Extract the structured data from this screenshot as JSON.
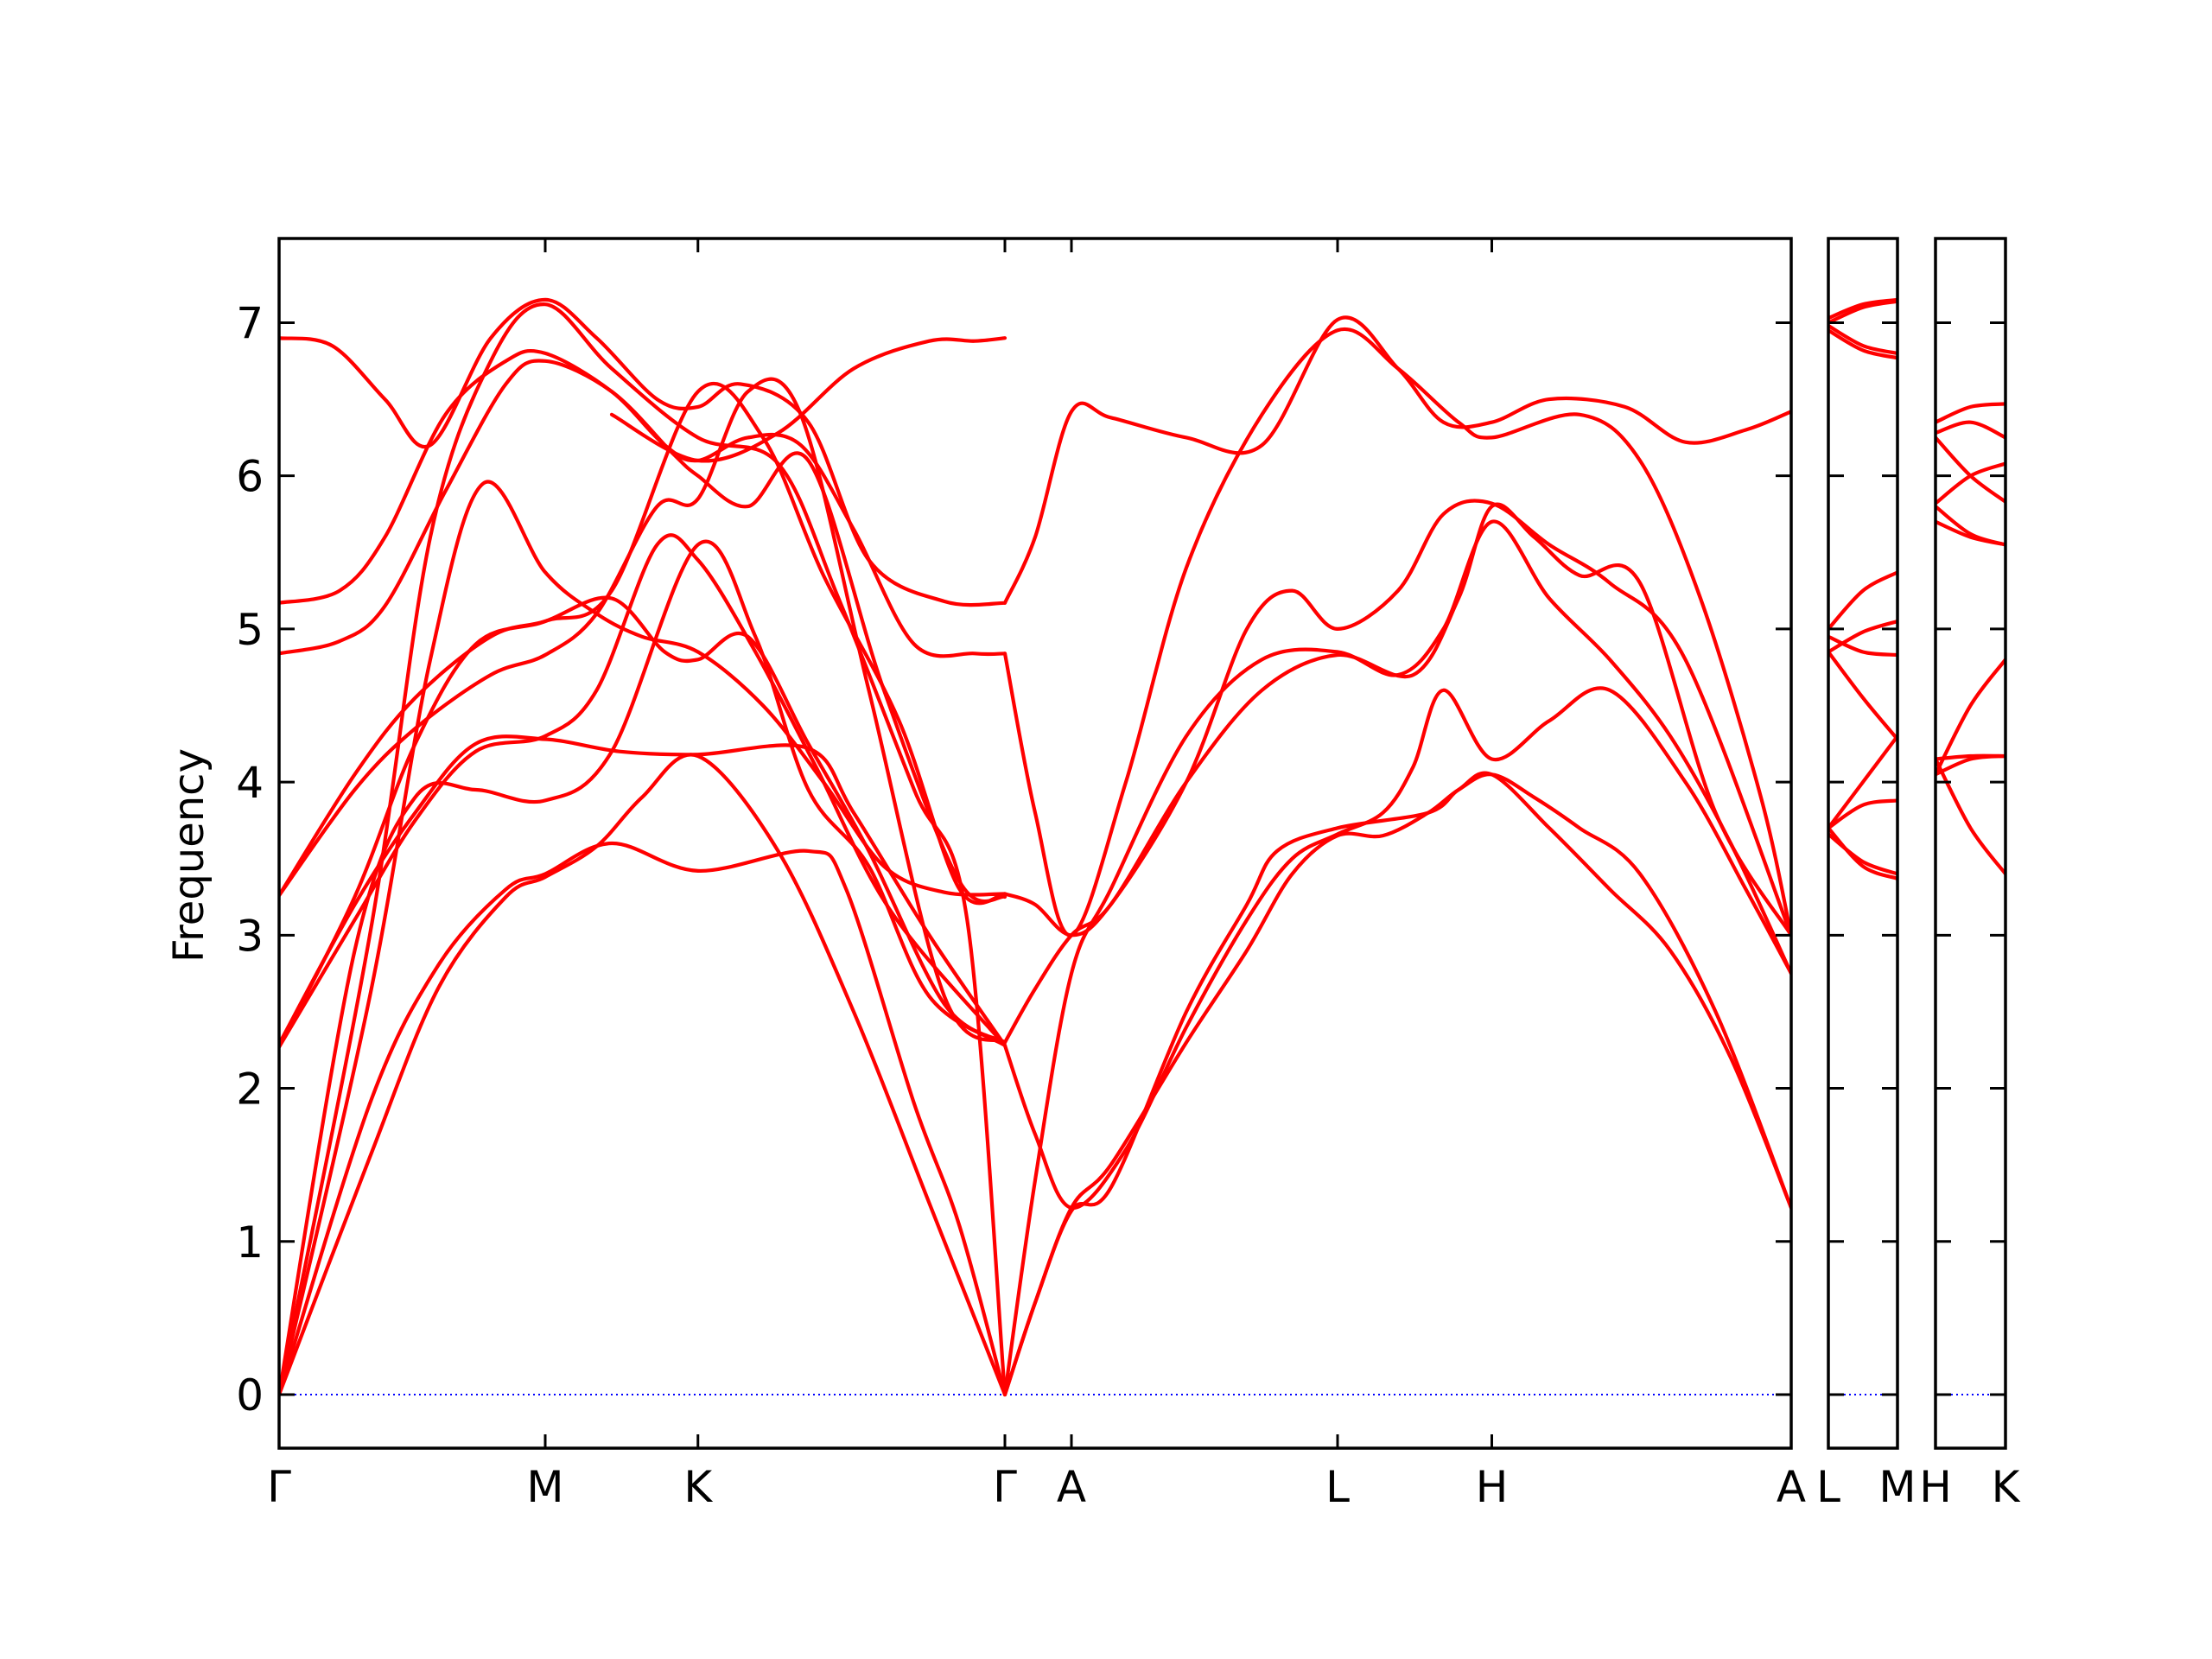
{
  "chart_data": {
    "type": "line",
    "title": "",
    "ylabel": "Frequency",
    "xlabel": "",
    "ylim": [
      -0.35,
      7.55
    ],
    "yticks": [
      0,
      1,
      2,
      3,
      4,
      5,
      6,
      7
    ],
    "zero_line": {
      "value": 0,
      "color": "#0000ff",
      "style": "dotted"
    },
    "line_color": "#ff0000",
    "axis_color": "#000000",
    "grid": false,
    "legend": "none",
    "panels": [
      {
        "id": "main",
        "xlim": [
          0,
          10
        ],
        "ticks": [
          {
            "x": 0,
            "label": "Γ"
          },
          {
            "x": 1.76,
            "label": "M"
          },
          {
            "x": 2.77,
            "label": "K"
          },
          {
            "x": 4.8,
            "label": "Γ"
          },
          {
            "x": 5.24,
            "label": "A"
          },
          {
            "x": 7.0,
            "label": "L"
          },
          {
            "x": 8.02,
            "label": "H"
          },
          {
            "x": 10.0,
            "label": "A"
          }
        ],
        "series": [
          {
            "x": [
              0,
              0.6,
              1.05,
              1.5,
              1.76,
              2.1,
              2.4,
              2.77,
              3.3,
              3.8,
              4.3,
              4.8
            ],
            "y": [
              0,
              1.55,
              2.65,
              3.25,
              3.38,
              3.58,
              3.9,
              4.17,
              3.55,
              2.5,
              1.25,
              0
            ]
          },
          {
            "x": [
              0,
              0.6,
              1.05,
              1.5,
              1.76,
              2.2,
              2.77,
              3.5,
              3.75,
              4.2,
              4.5,
              4.8
            ],
            "y": [
              0,
              1.9,
              2.8,
              3.3,
              3.4,
              3.6,
              3.42,
              3.55,
              3.3,
              1.9,
              1.1,
              0
            ]
          },
          {
            "x": [
              0,
              0.5,
              0.9,
              1.3,
              1.76,
              2.2,
              2.77,
              3.15,
              3.5,
              3.9,
              4.3,
              4.8
            ],
            "y": [
              0,
              2.9,
              3.9,
              3.95,
              3.88,
              4.2,
              5.55,
              4.95,
              3.95,
              3.45,
              2.6,
              2.28
            ]
          },
          {
            "x": [
              0,
              0.5,
              0.9,
              1.3,
              1.76,
              2.1,
              2.5,
              2.77,
              3.15,
              3.55,
              4.05,
              4.8
            ],
            "y": [
              2.27,
              3.1,
              3.75,
              4.2,
              4.3,
              4.6,
              5.55,
              5.45,
              4.85,
              4.1,
              3.15,
              2.28
            ]
          },
          {
            "x": [
              0,
              0.5,
              0.9,
              1.3,
              1.76,
              2.25,
              2.77,
              3.5,
              3.8,
              4.3,
              4.8
            ],
            "y": [
              2.29,
              3.2,
              3.8,
              4.25,
              4.28,
              4.2,
              4.18,
              4.22,
              3.8,
              3.0,
              2.28
            ]
          },
          {
            "x": [
              0,
              0.5,
              0.9,
              1.4,
              1.76,
              2.1,
              2.5,
              2.77,
              3.1,
              3.45,
              3.9,
              4.4,
              4.8
            ],
            "y": [
              3.26,
              3.95,
              4.35,
              4.7,
              4.83,
              5.1,
              5.8,
              5.85,
              6.55,
              6.4,
              4.6,
              2.6,
              2.3
            ]
          },
          {
            "x": [
              0,
              0.5,
              0.9,
              1.4,
              1.76,
              2.2,
              2.55,
              2.77,
              3.1,
              3.5,
              3.9,
              4.4,
              4.8
            ],
            "y": [
              3.26,
              4.05,
              4.55,
              4.95,
              5.05,
              5.2,
              4.85,
              4.8,
              4.95,
              4.25,
              3.55,
              2.55,
              2.3
            ]
          },
          {
            "x": [
              0,
              0.4,
              0.7,
              1.1,
              1.5,
              1.76,
              2.2,
              2.6,
              2.77,
              3.1,
              3.5,
              4.0,
              4.5,
              4.8
            ],
            "y": [
              4.84,
              4.92,
              5.15,
              5.9,
              6.6,
              6.75,
              6.55,
              6.15,
              6.0,
              5.8,
              6.1,
              4.6,
              3.35,
              3.25
            ]
          },
          {
            "x": [
              0,
              0.4,
              0.7,
              1.1,
              1.5,
              1.76,
              2.2,
              2.55,
              2.77,
              3.1,
              3.45,
              3.8,
              4.2,
              4.6,
              4.8
            ],
            "y": [
              5.17,
              5.25,
              5.6,
              6.4,
              6.75,
              6.8,
              6.55,
              6.2,
              6.1,
              6.25,
              6.2,
              5.65,
              4.9,
              4.84,
              4.84
            ]
          },
          {
            "x": [
              0,
              0.35,
              0.7,
              1.0,
              1.4,
              1.76,
              2.1,
              2.5,
              2.77,
              3.05,
              3.5,
              3.9,
              4.4,
              4.8
            ],
            "y": [
              6.9,
              6.85,
              6.5,
              6.2,
              6.9,
              7.15,
              6.9,
              6.5,
              6.45,
              6.6,
              6.35,
              5.45,
              5.18,
              5.17
            ]
          },
          {
            "x": [
              0,
              0.6,
              1.0,
              1.35,
              1.76,
              2.1,
              2.4,
              2.77,
              3.2,
              3.6,
              4.0,
              4.4,
              4.8
            ],
            "y": [
              0,
              2.6,
              4.8,
              5.95,
              5.37,
              5.1,
              4.95,
              4.85,
              4.5,
              4.0,
              3.45,
              3.28,
              3.27
            ]
          },
          {
            "x": [
              0,
              0.5,
              0.9,
              1.3,
              1.76,
              2.2,
              2.77,
              3.2,
              3.6,
              4.1,
              4.5,
              4.8
            ],
            "y": [
              2.27,
              3.25,
              4.25,
              4.9,
              5.05,
              5.25,
              6.55,
              6.25,
              5.35,
              4.4,
              3.3,
              3.27
            ]
          },
          {
            "x": [
              0,
              0.6,
              1.0,
              1.4,
              1.76,
              2.2,
              2.77,
              3.3,
              3.7,
              4.2,
              4.55,
              4.8
            ],
            "y": [
              0,
              3.0,
              5.6,
              6.75,
              7.12,
              6.7,
              6.25,
              6.08,
              5.2,
              3.95,
              3.1,
              0
            ]
          },
          {
            "x": [
              2.2,
              2.77,
              3.3,
              3.8,
              4.3,
              4.6,
              4.8
            ],
            "y": [
              6.4,
              6.1,
              6.28,
              6.7,
              6.88,
              6.88,
              6.9
            ]
          },
          {
            "x": [
              4.8,
              5.0,
              5.24,
              5.5,
              6.0,
              6.5,
              7.0,
              7.4,
              7.7,
              8.02,
              8.4,
              8.9,
              9.3,
              9.7,
              10.0
            ],
            "y": [
              5.17,
              5.6,
              6.42,
              6.38,
              6.25,
              6.2,
              7.02,
              6.7,
              6.35,
              6.35,
              6.5,
              6.45,
              6.22,
              6.3,
              6.42
            ]
          },
          {
            "x": [
              4.8,
              5.0,
              5.24,
              5.6,
              6.0,
              6.5,
              7.0,
              7.4,
              7.8,
              8.02,
              8.6,
              9.0,
              9.4,
              9.8,
              10.0
            ],
            "y": [
              4.84,
              3.8,
              3.0,
              4.0,
              5.4,
              6.4,
              6.95,
              6.7,
              6.35,
              6.25,
              6.4,
              6.1,
              5.2,
              3.9,
              3.0
            ]
          },
          {
            "x": [
              4.8,
              5.0,
              5.24,
              5.5,
              6.0,
              6.4,
              6.6,
              7.0,
              7.6,
              7.8,
              8.02,
              8.4,
              8.8,
              9.2,
              9.6,
              10.0
            ],
            "y": [
              0.0,
              0.6,
              1.2,
              1.35,
              2.5,
              3.2,
              3.55,
              3.7,
              3.8,
              3.95,
              4.05,
              3.7,
              3.3,
              2.9,
              2.2,
              1.22
            ]
          },
          {
            "x": [
              4.8,
              5.0,
              5.24,
              5.5,
              6.0,
              6.4,
              6.7,
              7.0,
              7.3,
              7.6,
              7.8,
              8.02,
              8.3,
              8.6,
              9.0,
              9.5,
              10.0
            ],
            "y": [
              0.0,
              0.6,
              1.22,
              1.5,
              2.3,
              2.9,
              3.4,
              3.65,
              3.65,
              3.8,
              3.95,
              4.05,
              3.9,
              3.7,
              3.4,
              2.5,
              1.22
            ]
          },
          {
            "x": [
              4.8,
              5.0,
              5.24,
              5.5,
              6.0,
              6.5,
              7.0,
              7.5,
              7.8,
              8.02,
              8.3,
              8.6,
              9.0,
              9.5,
              10.0
            ],
            "y": [
              3.27,
              3.2,
              3.0,
              3.2,
              4.0,
              4.6,
              4.83,
              4.7,
              5.2,
              5.8,
              5.6,
              5.35,
              5.3,
              3.8,
              3.0
            ]
          },
          {
            "x": [
              4.8,
              5.0,
              5.24,
              5.5,
              6.0,
              6.4,
              6.7,
              7.0,
              7.4,
              7.7,
              8.02,
              8.4,
              8.8,
              9.3,
              10.0
            ],
            "y": [
              2.3,
              2.65,
              3.0,
              3.2,
              4.0,
              5.0,
              5.25,
              5.0,
              5.25,
              5.75,
              5.82,
              5.55,
              5.3,
              4.8,
              3.0
            ]
          },
          {
            "x": [
              4.8,
              5.0,
              5.24,
              5.6,
              6.0,
              6.4,
              6.7,
              7.0,
              7.3,
              7.5,
              7.7,
              8.02,
              8.4,
              8.8,
              9.3,
              9.7,
              10.0
            ],
            "y": [
              2.28,
              1.7,
              1.22,
              1.6,
              2.4,
              3.1,
              3.5,
              3.66,
              3.8,
              4.1,
              4.6,
              4.15,
              4.4,
              4.6,
              4.0,
              3.3,
              2.75
            ]
          },
          {
            "x": [
              4.8,
              5.0,
              5.24,
              5.5,
              6.0,
              6.5,
              7.0,
              7.4,
              7.7,
              8.02,
              8.4,
              8.8,
              9.2,
              9.6,
              10.0
            ],
            "y": [
              0.0,
              1.4,
              2.75,
              3.3,
              4.3,
              4.8,
              4.85,
              4.7,
              5.0,
              5.7,
              5.2,
              4.8,
              4.3,
              3.6,
              2.75
            ]
          }
        ]
      },
      {
        "id": "L-M",
        "xlim": [
          0,
          1
        ],
        "ticks": [
          {
            "x": 0,
            "label": "L"
          },
          {
            "x": 1,
            "label": "M"
          }
        ],
        "series": [
          {
            "x": [
              0,
              0.5,
              1
            ],
            "y": [
              7.03,
              7.12,
              7.15
            ]
          },
          {
            "x": [
              0,
              0.5,
              1
            ],
            "y": [
              7.0,
              7.1,
              7.14
            ]
          },
          {
            "x": [
              0,
              0.5,
              1
            ],
            "y": [
              6.98,
              6.85,
              6.8
            ]
          },
          {
            "x": [
              0,
              0.5,
              1
            ],
            "y": [
              6.95,
              6.82,
              6.77
            ]
          },
          {
            "x": [
              0,
              0.5,
              1
            ],
            "y": [
              5.0,
              5.25,
              5.37
            ]
          },
          {
            "x": [
              0,
              0.5,
              1
            ],
            "y": [
              4.85,
              4.98,
              5.05
            ]
          },
          {
            "x": [
              0,
              0.5,
              1
            ],
            "y": [
              4.95,
              4.85,
              4.83
            ]
          },
          {
            "x": [
              0,
              0.5,
              1
            ],
            "y": [
              4.85,
              4.55,
              4.28
            ]
          },
          {
            "x": [
              0,
              0.5,
              1
            ],
            "y": [
              3.7,
              4.0,
              4.3
            ]
          },
          {
            "x": [
              0,
              0.5,
              1
            ],
            "y": [
              3.7,
              3.85,
              3.88
            ]
          },
          {
            "x": [
              0,
              0.5,
              1
            ],
            "y": [
              3.66,
              3.48,
              3.4
            ]
          },
          {
            "x": [
              0,
              0.5,
              1
            ],
            "y": [
              3.7,
              3.45,
              3.37
            ]
          }
        ]
      },
      {
        "id": "H-K",
        "xlim": [
          0,
          1
        ],
        "ticks": [
          {
            "x": 0,
            "label": "H"
          },
          {
            "x": 1,
            "label": "K"
          }
        ],
        "series": [
          {
            "x": [
              0,
              0.5,
              1
            ],
            "y": [
              6.35,
              6.45,
              6.47
            ]
          },
          {
            "x": [
              0,
              0.5,
              1
            ],
            "y": [
              6.28,
              6.35,
              6.25
            ]
          },
          {
            "x": [
              0,
              0.5,
              1
            ],
            "y": [
              6.25,
              6.0,
              5.83
            ]
          },
          {
            "x": [
              0,
              0.5,
              1
            ],
            "y": [
              5.82,
              6.0,
              6.08
            ]
          },
          {
            "x": [
              0,
              0.5,
              1
            ],
            "y": [
              5.8,
              5.62,
              5.55
            ]
          },
          {
            "x": [
              0,
              0.5,
              1
            ],
            "y": [
              5.7,
              5.6,
              5.55
            ]
          },
          {
            "x": [
              0,
              0.5,
              1
            ],
            "y": [
              4.15,
              4.17,
              4.17
            ]
          },
          {
            "x": [
              0,
              0.5,
              1
            ],
            "y": [
              4.05,
              4.5,
              4.8
            ]
          },
          {
            "x": [
              0,
              0.5,
              1
            ],
            "y": [
              4.15,
              3.7,
              3.4
            ]
          },
          {
            "x": [
              0,
              0.5,
              1
            ],
            "y": [
              4.05,
              4.15,
              4.17
            ]
          }
        ]
      }
    ]
  }
}
